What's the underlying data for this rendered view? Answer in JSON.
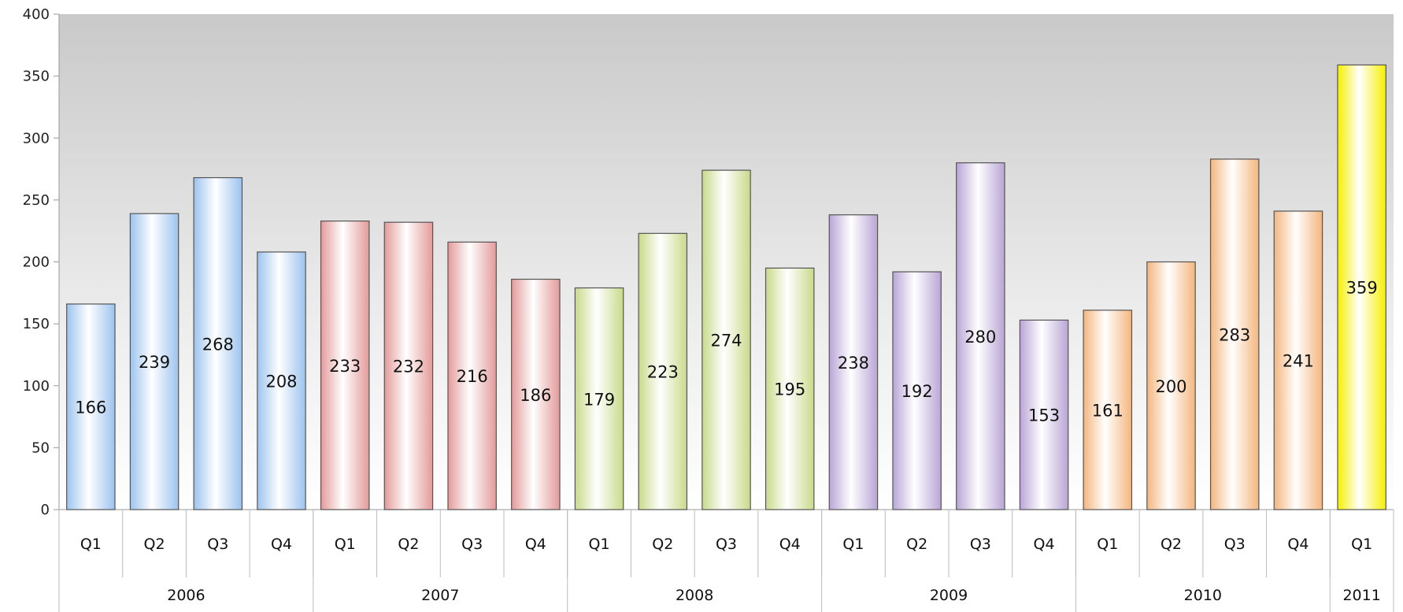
{
  "chart_data": {
    "type": "bar",
    "title": "",
    "xlabel": "",
    "ylabel": "",
    "ylim": [
      0,
      400
    ],
    "yticks": [
      0,
      50,
      100,
      150,
      200,
      250,
      300,
      350,
      400
    ],
    "grid": false,
    "legend": "none",
    "groups": [
      "2006",
      "2007",
      "2008",
      "2009",
      "2010",
      "2011"
    ],
    "categories": [
      {
        "group": "2006",
        "label": "Q1",
        "value": 166,
        "color": "#9cc3ee"
      },
      {
        "group": "2006",
        "label": "Q2",
        "value": 239,
        "color": "#9cc3ee"
      },
      {
        "group": "2006",
        "label": "Q3",
        "value": 268,
        "color": "#9cc3ee"
      },
      {
        "group": "2006",
        "label": "Q4",
        "value": 208,
        "color": "#9cc3ee"
      },
      {
        "group": "2007",
        "label": "Q1",
        "value": 233,
        "color": "#e49a9a"
      },
      {
        "group": "2007",
        "label": "Q2",
        "value": 232,
        "color": "#e49a9a"
      },
      {
        "group": "2007",
        "label": "Q3",
        "value": 216,
        "color": "#e49a9a"
      },
      {
        "group": "2007",
        "label": "Q4",
        "value": 186,
        "color": "#e49a9a"
      },
      {
        "group": "2008",
        "label": "Q1",
        "value": 179,
        "color": "#c8da8a"
      },
      {
        "group": "2008",
        "label": "Q2",
        "value": 223,
        "color": "#c8da8a"
      },
      {
        "group": "2008",
        "label": "Q3",
        "value": 274,
        "color": "#c8da8a"
      },
      {
        "group": "2008",
        "label": "Q4",
        "value": 195,
        "color": "#c8da8a"
      },
      {
        "group": "2009",
        "label": "Q1",
        "value": 238,
        "color": "#b9a5d6"
      },
      {
        "group": "2009",
        "label": "Q2",
        "value": 192,
        "color": "#b9a5d6"
      },
      {
        "group": "2009",
        "label": "Q3",
        "value": 280,
        "color": "#b9a5d6"
      },
      {
        "group": "2009",
        "label": "Q4",
        "value": 153,
        "color": "#b9a5d6"
      },
      {
        "group": "2010",
        "label": "Q1",
        "value": 161,
        "color": "#f4b67e"
      },
      {
        "group": "2010",
        "label": "Q2",
        "value": 200,
        "color": "#f4b67e"
      },
      {
        "group": "2010",
        "label": "Q3",
        "value": 283,
        "color": "#f4b67e"
      },
      {
        "group": "2010",
        "label": "Q4",
        "value": 241,
        "color": "#f4b67e"
      },
      {
        "group": "2011",
        "label": "Q1",
        "value": 359,
        "color": "#f5f000"
      }
    ]
  }
}
